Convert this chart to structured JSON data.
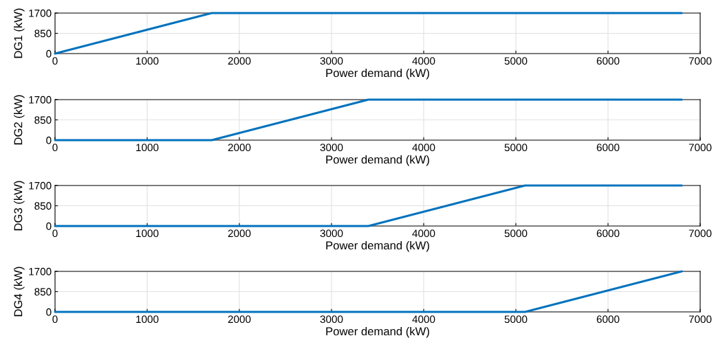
{
  "chart_data": [
    {
      "type": "line",
      "xlabel": "Power demand (kW)",
      "ylabel": "DG1 (kW)",
      "series": [
        {
          "color": "#0072bd",
          "x": [
            0,
            1700,
            6800
          ],
          "values": [
            0,
            1700,
            1700
          ]
        }
      ],
      "xlim": [
        0,
        7000
      ],
      "xticks": [
        0,
        1000,
        2000,
        3000,
        4000,
        5000,
        6000,
        7000
      ],
      "ylim": [
        0,
        1700
      ],
      "yticks": [
        0,
        850,
        1700
      ],
      "grid": true,
      "marker": "none",
      "line_style": "solid"
    },
    {
      "type": "line",
      "xlabel": "Power demand (kW)",
      "ylabel": "DG2 (kW)",
      "series": [
        {
          "color": "#0072bd",
          "x": [
            0,
            1700,
            3400,
            6800
          ],
          "values": [
            0,
            0,
            1700,
            1700
          ]
        }
      ],
      "xlim": [
        0,
        7000
      ],
      "xticks": [
        0,
        1000,
        2000,
        3000,
        4000,
        5000,
        6000,
        7000
      ],
      "ylim": [
        0,
        1700
      ],
      "yticks": [
        0,
        850,
        1700
      ],
      "grid": true,
      "marker": "none",
      "line_style": "solid"
    },
    {
      "type": "line",
      "xlabel": "Power demand (kW)",
      "ylabel": "DG3 (kW)",
      "series": [
        {
          "color": "#0072bd",
          "x": [
            0,
            3400,
            5100,
            6800
          ],
          "values": [
            0,
            0,
            1700,
            1700
          ]
        }
      ],
      "xlim": [
        0,
        7000
      ],
      "xticks": [
        0,
        1000,
        2000,
        3000,
        4000,
        5000,
        6000,
        7000
      ],
      "ylim": [
        0,
        1700
      ],
      "yticks": [
        0,
        850,
        1700
      ],
      "grid": true,
      "marker": "none",
      "line_style": "solid"
    },
    {
      "type": "line",
      "xlabel": "Power demand (kW)",
      "ylabel": "DG4 (kW)",
      "series": [
        {
          "color": "#0072bd",
          "x": [
            0,
            5100,
            6800
          ],
          "values": [
            0,
            0,
            1700
          ]
        }
      ],
      "xlim": [
        0,
        7000
      ],
      "xticks": [
        0,
        1000,
        2000,
        3000,
        4000,
        5000,
        6000,
        7000
      ],
      "ylim": [
        0,
        1700
      ],
      "yticks": [
        0,
        850,
        1700
      ],
      "grid": true,
      "marker": "none",
      "line_style": "solid"
    }
  ]
}
